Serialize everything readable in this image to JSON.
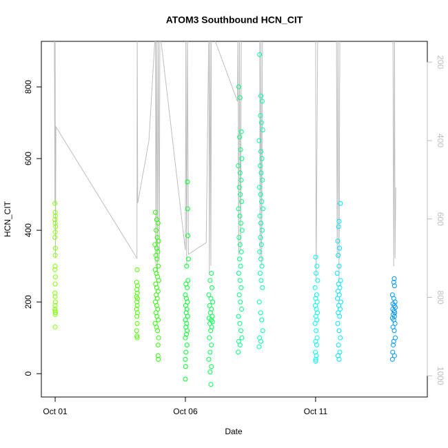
{
  "chart_data": {
    "type": "scatter",
    "title": "ATOM3 Southbound HCN_CIT",
    "x_label": "Date",
    "y_label": "HCN_CIT",
    "xlim": [
      0.47,
      15.29
    ],
    "xticks": [
      {
        "value": 1,
        "label": "Oct 01"
      },
      {
        "value": 6,
        "label": "Oct 06"
      },
      {
        "value": 11,
        "label": "Oct 11"
      }
    ],
    "ylim": [
      -65,
      927
    ],
    "yticks": [
      0,
      200,
      400,
      600,
      800
    ],
    "y2lim": [
      1054,
      147
    ],
    "y2ticks": [
      200,
      400,
      600,
      800,
      1000
    ],
    "series": [
      {
        "type": "line",
        "axis": "y2",
        "color": "#bebebe",
        "x": [
          0.97,
          0.99,
          1.0,
          1.01,
          1.03,
          4.14,
          4.15,
          4.17,
          4.6,
          4.85,
          4.87,
          4.9,
          4.93,
          4.96,
          5.0,
          5.02,
          6.0,
          6.02,
          6.05,
          6.08,
          6.12,
          6.8,
          6.9,
          6.92,
          6.95,
          6.98,
          7.0,
          8.0,
          8.02,
          8.05,
          8.08,
          8.12,
          8.15,
          8.85,
          8.87,
          8.9,
          8.93,
          8.96,
          11.0,
          11.02,
          11.05,
          11.08,
          11.8,
          11.83,
          11.86,
          11.9,
          11.93,
          13.97,
          14.0,
          14.03,
          14.05,
          14.08
        ],
        "values": [
          120,
          560,
          130,
          700,
          365,
          700,
          120,
          560,
          400,
          120,
          720,
          120,
          740,
          120,
          700,
          120,
          680,
          120,
          720,
          120,
          690,
          660,
          120,
          740,
          120,
          720,
          120,
          300,
          120,
          690,
          120,
          680,
          120,
          120,
          700,
          120,
          720,
          120,
          120,
          760,
          440,
          120,
          120,
          700,
          120,
          760,
          120,
          120,
          720,
          120,
          700,
          520
        ]
      },
      {
        "type": "scatter",
        "color": "#7fff00",
        "x": [
          0.99,
          1.0,
          1.01,
          0.99,
          1.0,
          1.02,
          1.0,
          0.99,
          1.01,
          1.0,
          1.0,
          0.99,
          1.01,
          1.0,
          0.99,
          1.0,
          1.01,
          1.0,
          0.99,
          1.0,
          1.01,
          1.0,
          1.0
        ],
        "values": [
          475,
          450,
          440,
          430,
          420,
          410,
          395,
          380,
          350,
          330,
          300,
          290,
          270,
          250,
          225,
          215,
          200,
          190,
          180,
          175,
          170,
          165,
          130
        ]
      },
      {
        "type": "scatter",
        "color": "#4cff00",
        "x": [
          4.15,
          4.13,
          4.16,
          4.14,
          4.15,
          4.12,
          4.16,
          4.14,
          4.15,
          4.13,
          4.16,
          4.14,
          4.15,
          4.13,
          4.14,
          4.15
        ],
        "values": [
          290,
          255,
          245,
          235,
          225,
          215,
          210,
          200,
          190,
          180,
          170,
          160,
          140,
          120,
          105,
          100
        ]
      },
      {
        "type": "scatter",
        "color": "#2cff00",
        "x": [
          4.85,
          4.9,
          4.95,
          4.88,
          4.92,
          4.97,
          4.83,
          4.9,
          4.94,
          4.87,
          4.91,
          4.96,
          4.84,
          4.89,
          4.93,
          4.98,
          4.86,
          4.9,
          4.95,
          4.88,
          4.92,
          4.85,
          4.9,
          4.94,
          4.87,
          4.91,
          4.96,
          4.84,
          4.89,
          4.93,
          4.97,
          4.95,
          4.95,
          4.96
        ],
        "values": [
          450,
          430,
          420,
          400,
          380,
          370,
          360,
          350,
          340,
          330,
          320,
          300,
          290,
          280,
          270,
          260,
          250,
          240,
          230,
          220,
          210,
          200,
          190,
          180,
          170,
          160,
          150,
          140,
          130,
          120,
          100,
          80,
          50,
          40
        ]
      },
      {
        "type": "scatter",
        "color": "#00ff2a",
        "x": [
          6.08,
          6.09,
          6.1,
          6.12,
          6.05,
          6.1,
          6.02,
          6.07,
          6.0,
          6.04,
          6.08,
          6.01,
          6.06,
          6.03,
          6.09,
          6.0,
          6.05,
          6.02,
          6.07,
          6.04,
          6.0,
          6.06,
          6.02,
          6.0,
          6.01,
          6.0
        ],
        "values": [
          535,
          460,
          385,
          320,
          300,
          260,
          250,
          240,
          220,
          210,
          200,
          190,
          180,
          170,
          160,
          150,
          140,
          130,
          120,
          110,
          100,
          80,
          60,
          40,
          20,
          -15
        ]
      },
      {
        "type": "scatter",
        "color": "#00ff50",
        "x": [
          7.0,
          6.95,
          7.02,
          6.9,
          6.98,
          7.05,
          6.93,
          7.0,
          6.96,
          7.03,
          6.91,
          6.99,
          7.04,
          6.94,
          7.01,
          6.97,
          6.92,
          7.0,
          6.95,
          6.9,
          7.0,
          6.95,
          6.98
        ],
        "values": [
          280,
          260,
          240,
          220,
          210,
          200,
          190,
          180,
          170,
          160,
          155,
          150,
          145,
          140,
          130,
          120,
          100,
          80,
          60,
          40,
          20,
          5,
          -30
        ]
      },
      {
        "type": "scatter",
        "color": "#00ff80",
        "x": [
          8.05,
          8.1,
          8.15,
          8.08,
          8.12,
          8.17,
          8.03,
          8.1,
          8.14,
          8.07,
          8.11,
          8.16,
          8.04,
          8.09,
          8.13,
          8.18,
          8.06,
          8.1,
          8.15,
          8.08,
          8.12,
          8.05,
          8.1,
          8.14,
          8.07,
          8.11,
          8.16,
          8.04,
          8.09,
          8.13,
          8.17,
          8.05,
          8.1,
          8.03
        ],
        "values": [
          800,
          770,
          675,
          660,
          625,
          600,
          580,
          560,
          540,
          520,
          500,
          480,
          460,
          440,
          420,
          400,
          380,
          360,
          340,
          320,
          300,
          280,
          260,
          240,
          220,
          200,
          180,
          160,
          140,
          120,
          100,
          90,
          80,
          60
        ]
      },
      {
        "type": "scatter",
        "color": "#00ffa8",
        "x": [
          8.85,
          8.9,
          8.95,
          8.88,
          8.92,
          8.97,
          8.83,
          8.9,
          8.94,
          8.87,
          8.91,
          8.96,
          8.84,
          8.89,
          8.93,
          8.98,
          8.86,
          8.9,
          8.95,
          8.88,
          8.92,
          8.85,
          8.9,
          8.94,
          8.87,
          8.91,
          8.96,
          8.84,
          8.89,
          8.93,
          8.97,
          8.85,
          8.9,
          8.83
        ],
        "values": [
          890,
          775,
          760,
          720,
          700,
          680,
          650,
          620,
          600,
          580,
          560,
          540,
          520,
          500,
          480,
          460,
          440,
          420,
          400,
          380,
          360,
          340,
          320,
          300,
          280,
          260,
          240,
          200,
          170,
          150,
          120,
          100,
          90,
          75
        ]
      },
      {
        "type": "scatter",
        "color": "#00fff0",
        "x": [
          11.0,
          11.05,
          11.02,
          11.08,
          10.98,
          11.04,
          11.0,
          11.06,
          10.99,
          11.03,
          11.07,
          11.01,
          11.05,
          10.98,
          11.02,
          11.06,
          11.0,
          11.04,
          10.99,
          11.03,
          11.01,
          11.0
        ],
        "values": [
          325,
          300,
          280,
          260,
          240,
          220,
          210,
          200,
          190,
          180,
          170,
          160,
          150,
          140,
          120,
          100,
          90,
          80,
          60,
          50,
          40,
          35
        ]
      },
      {
        "type": "scatter",
        "color": "#00e4ff",
        "x": [
          11.95,
          11.9,
          11.88,
          11.85,
          11.92,
          11.87,
          11.9,
          11.83,
          11.96,
          11.88,
          11.93,
          11.86,
          11.91,
          11.84,
          11.97,
          11.89,
          11.94,
          11.87,
          11.92,
          11.85,
          11.9,
          11.95,
          11.88,
          11.93,
          11.86,
          11.9
        ],
        "values": [
          475,
          425,
          410,
          370,
          350,
          330,
          300,
          280,
          260,
          250,
          240,
          230,
          220,
          210,
          200,
          190,
          180,
          170,
          160,
          140,
          120,
          100,
          80,
          60,
          50,
          40
        ]
      },
      {
        "type": "scatter",
        "color": "#0096ff",
        "x": [
          14.02,
          14.0,
          14.03,
          13.95,
          14.0,
          14.05,
          13.97,
          14.02,
          14.06,
          13.96,
          14.01,
          14.04,
          13.98,
          14.03,
          13.95,
          14.0,
          14.05,
          13.97,
          14.02,
          14.06,
          14.0,
          13.98,
          13.96,
          14.03,
          13.95
        ],
        "values": [
          265,
          255,
          245,
          220,
          210,
          200,
          195,
          190,
          185,
          180,
          175,
          170,
          165,
          160,
          155,
          150,
          140,
          130,
          120,
          100,
          90,
          80,
          60,
          50,
          40
        ]
      }
    ]
  }
}
